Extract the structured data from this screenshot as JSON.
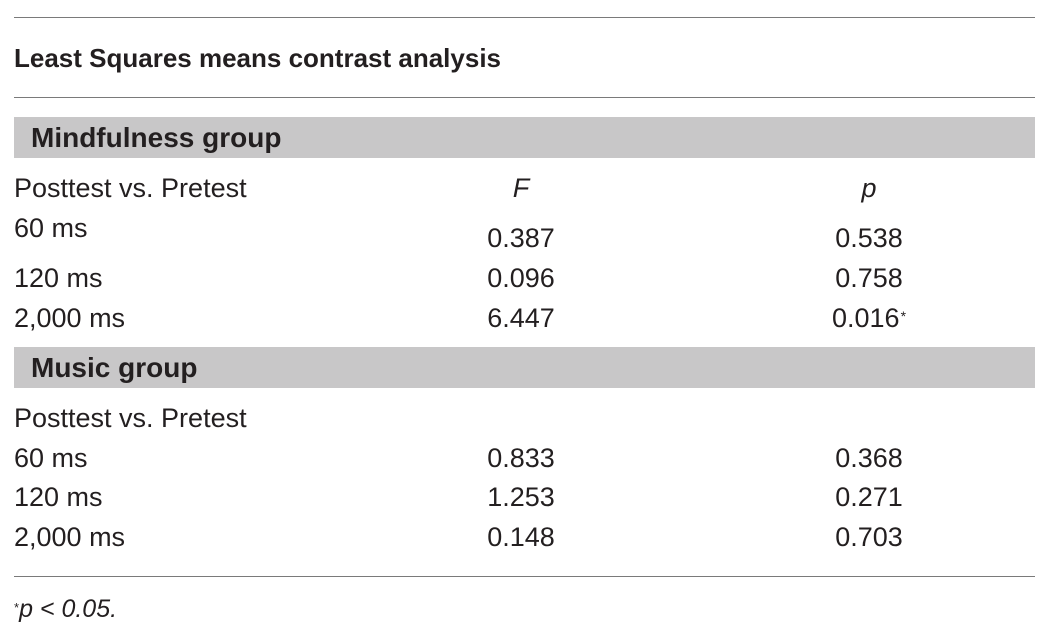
{
  "title": "Least Squares means contrast analysis",
  "groups": [
    {
      "name": "Mindfulness group",
      "subheader": {
        "label": "Posttest vs. Pretest",
        "f_header": "F",
        "p_header": "p"
      },
      "rows": [
        {
          "label": "60 ms",
          "F": "0.387",
          "p": "0.538",
          "mark": ""
        },
        {
          "label": "120 ms",
          "F": "0.096",
          "p": "0.758",
          "mark": ""
        },
        {
          "label": "2,000 ms",
          "F": "6.447",
          "p": "0.016",
          "mark": "*"
        }
      ]
    },
    {
      "name": "Music group",
      "subheader": {
        "label": "Posttest vs. Pretest"
      },
      "rows": [
        {
          "label": "60 ms",
          "F": "0.833",
          "p": "0.368"
        },
        {
          "label": "120 ms",
          "F": "1.253",
          "p": "0.271"
        },
        {
          "label": "2,000 ms",
          "F": "0.148",
          "p": "0.703"
        }
      ]
    }
  ],
  "footnote": {
    "mark": "*",
    "text": "p < 0.05."
  }
}
